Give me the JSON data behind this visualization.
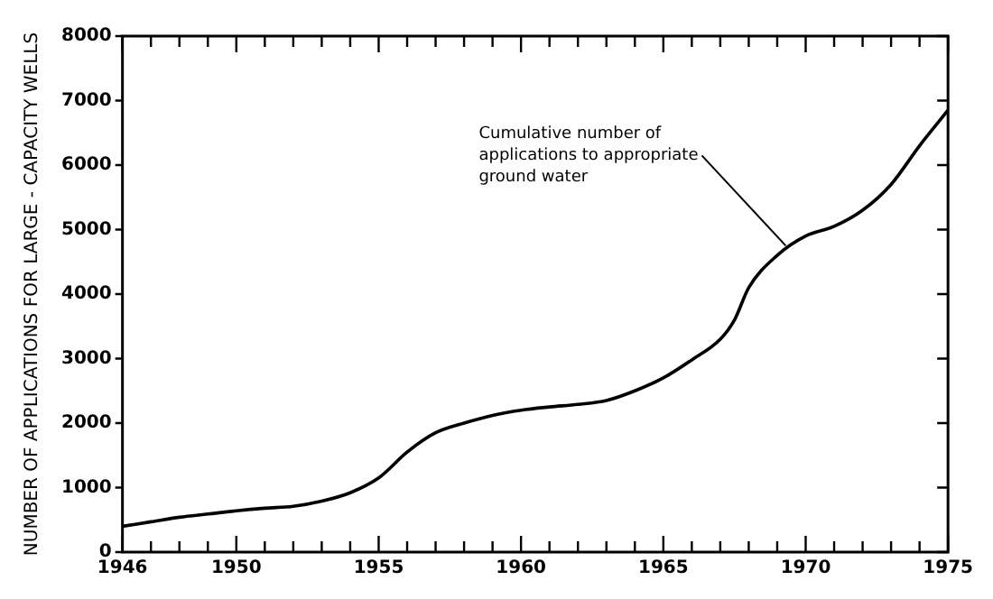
{
  "chart_data": {
    "type": "line",
    "ylabel": "NUMBER OF APPLICATIONS FOR LARGE - CAPACITY WELLS",
    "x": [
      1946,
      1947,
      1948,
      1949,
      1950,
      1951,
      1952,
      1953,
      1954,
      1955,
      1956,
      1957,
      1958,
      1959,
      1960,
      1961,
      1962,
      1963,
      1964,
      1965,
      1966,
      1967,
      1967.5,
      1968,
      1969,
      1970,
      1971,
      1972,
      1973,
      1974,
      1975
    ],
    "series": [
      {
        "color": "#000000",
        "values": [
          400,
          470,
          540,
          590,
          640,
          680,
          710,
          790,
          920,
          1150,
          1550,
          1850,
          2000,
          2120,
          2200,
          2250,
          2290,
          2350,
          2500,
          2700,
          2980,
          3300,
          3600,
          4100,
          4600,
          4900,
          5050,
          5300,
          5700,
          6300,
          6850
        ]
      }
    ],
    "xlim": [
      1946,
      1975
    ],
    "xticks": [
      1946,
      {
        "value": 1947,
        "label": null
      },
      {
        "value": 1948,
        "label": null
      },
      {
        "value": 1949,
        "label": null
      },
      1950,
      {
        "value": 1951,
        "label": null
      },
      {
        "value": 1952,
        "label": null
      },
      {
        "value": 1953,
        "label": null
      },
      {
        "value": 1954,
        "label": null
      },
      1955,
      {
        "value": 1956,
        "label": null
      },
      {
        "value": 1957,
        "label": null
      },
      {
        "value": 1958,
        "label": null
      },
      {
        "value": 1959,
        "label": null
      },
      1960,
      {
        "value": 1961,
        "label": null
      },
      {
        "value": 1962,
        "label": null
      },
      {
        "value": 1963,
        "label": null
      },
      {
        "value": 1964,
        "label": null
      },
      1965,
      {
        "value": 1966,
        "label": null
      },
      {
        "value": 1967,
        "label": null
      },
      {
        "value": 1968,
        "label": null
      },
      {
        "value": 1969,
        "label": null
      },
      1970,
      {
        "value": 1971,
        "label": null
      },
      {
        "value": 1972,
        "label": null
      },
      {
        "value": 1973,
        "label": null
      },
      {
        "value": 1974,
        "label": null
      },
      1975
    ],
    "ylim": [
      0,
      8000
    ],
    "yticks": [
      0,
      1000,
      2000,
      3000,
      4000,
      5000,
      6000,
      7000,
      8000
    ],
    "grid": false,
    "legend": false,
    "marker": "none",
    "line_style": "solid",
    "annotations": [
      {
        "text": "Cumulative number of\napplications to appropriate\nground water",
        "x": 1969.3,
        "y": 4750
      }
    ]
  }
}
